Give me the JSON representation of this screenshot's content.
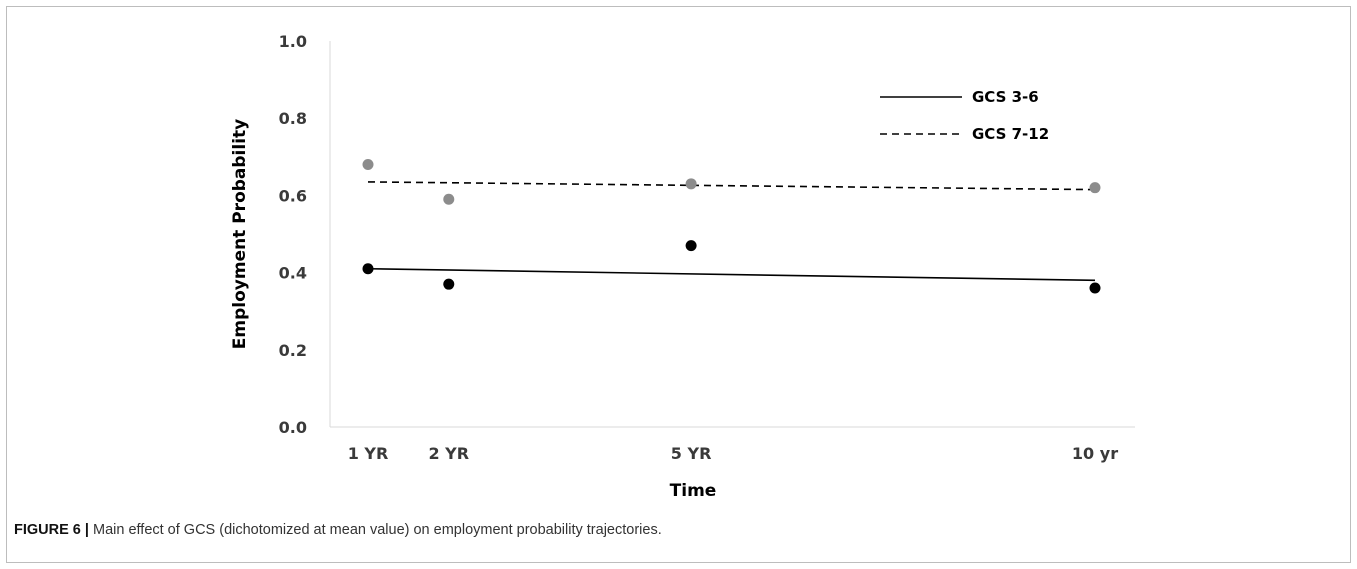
{
  "chart_data": {
    "type": "scatter",
    "title": "",
    "xlabel": "Time",
    "ylabel": "Employment Probability",
    "x_categories": [
      "1 YR",
      "2 YR",
      "5 YR",
      "10 yr"
    ],
    "x_positions": [
      1,
      2,
      5,
      10
    ],
    "ylim": [
      0.0,
      1.0
    ],
    "yticks": [
      "0.0",
      "0.2",
      "0.4",
      "0.6",
      "0.8",
      "1.0"
    ],
    "grid": false,
    "legend_placement": "top-right",
    "series": [
      {
        "name": "GCS 3-6",
        "line_style": "solid",
        "point_color": "#000000",
        "points_y": [
          0.41,
          0.37,
          0.47,
          0.36
        ],
        "trend": {
          "start": 0.41,
          "end": 0.38
        }
      },
      {
        "name": "GCS 7-12",
        "line_style": "dashed",
        "point_color": "#8c8c8c",
        "points_y": [
          0.68,
          0.59,
          0.63,
          0.62
        ],
        "trend": {
          "start": 0.635,
          "end": 0.615
        }
      }
    ]
  },
  "caption": {
    "label": "FIGURE 6 |",
    "text": " Main effect of GCS (dichotomized at mean value) on employment probability trajectories."
  }
}
